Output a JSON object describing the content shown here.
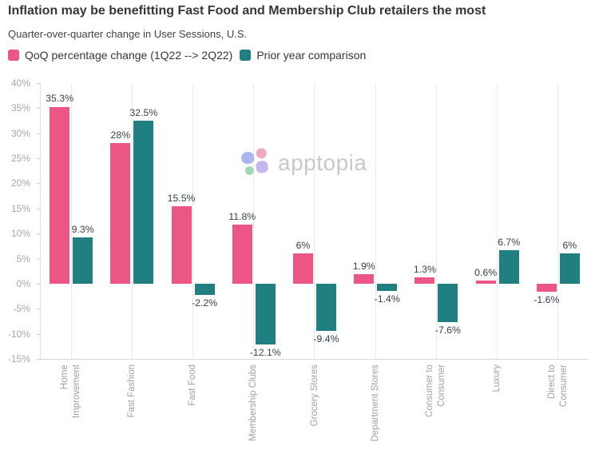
{
  "header": {
    "title": "Inflation may be benefitting Fast Food and Membership Club retailers the most",
    "subtitle": "Quarter-over-quarter change in User Sessions, U.S."
  },
  "legend": {
    "items": [
      {
        "label": "QoQ percentage change (1Q22 --> 2Q22)",
        "color": "#EC5685"
      },
      {
        "label": "Prior year comparison",
        "color": "#1F7F81"
      }
    ]
  },
  "watermark": {
    "text": "apptopia",
    "icon": "apptopia-flower-icon",
    "petal_colors": [
      "#AAB6F1",
      "#F3A7BD",
      "#9FD8B5",
      "#C7B5F1"
    ]
  },
  "chart_data": {
    "type": "bar",
    "title": "Inflation may be benefitting Fast Food and Membership Club retailers the most",
    "subtitle": "Quarter-over-quarter change in User Sessions, U.S.",
    "categories": [
      "Home\nImprovement",
      "Fast Fashion",
      "Fast Food",
      "Membership Clubs",
      "Grocery Stores",
      "Department Stores",
      "Consumer to\nConsumer",
      "Luxury",
      "Direct to\nConsumer"
    ],
    "series": [
      {
        "name": "QoQ percentage change (1Q22 --> 2Q22)",
        "color": "#EC5685",
        "values": [
          35.3,
          28,
          15.5,
          11.8,
          6,
          1.9,
          1.3,
          0.6,
          -1.6
        ],
        "labels": [
          "35.3%",
          "28%",
          "15.5%",
          "11.8%",
          "6%",
          "1.9%",
          "1.3%",
          "0.6%",
          "-1.6%"
        ]
      },
      {
        "name": "Prior year comparison",
        "color": "#1F7F81",
        "values": [
          9.3,
          32.5,
          -2.2,
          -12.1,
          -9.4,
          -1.4,
          -7.6,
          6.7,
          6
        ],
        "labels": [
          "9.3%",
          "32.5%",
          "-2.2%",
          "-12.1%",
          "-9.4%",
          "-1.4%",
          "-7.6%",
          "6.7%",
          "6%"
        ]
      }
    ],
    "xlabel": "",
    "ylabel": "",
    "ylim": [
      -15,
      40
    ],
    "yticks": [
      "40%",
      "35%",
      "30%",
      "25%",
      "20%",
      "15%",
      "10%",
      "5%",
      "0%",
      "-5%",
      "-10%",
      "-15%"
    ],
    "grid": "vertical-category-centerlines",
    "legend_position": "top-left",
    "value_labels": true
  }
}
